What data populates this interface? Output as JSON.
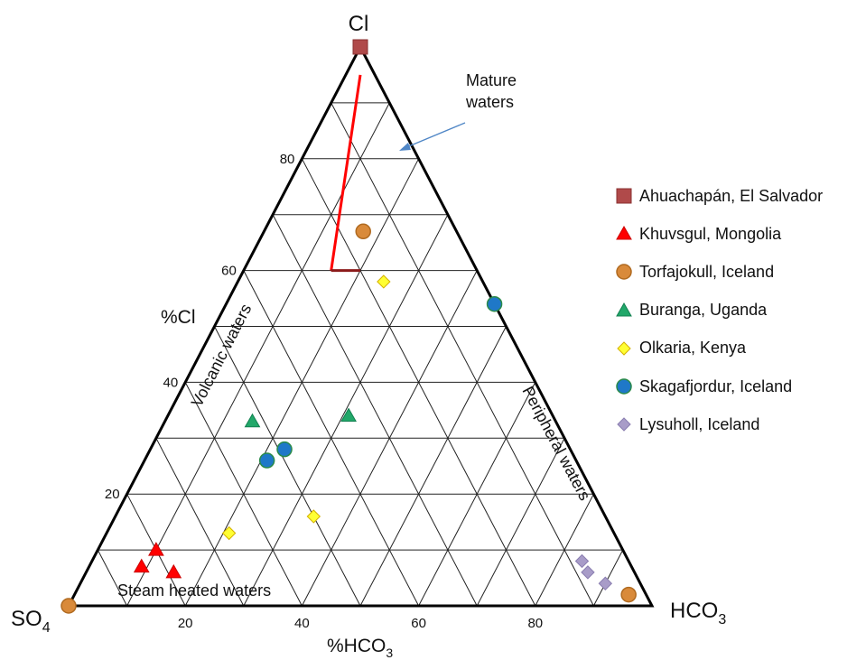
{
  "chart_data": {
    "type": "scatter",
    "subtype": "ternary",
    "vertices": {
      "top": "Cl",
      "left": [
        "SO",
        "4"
      ],
      "right": [
        "HCO",
        "3"
      ]
    },
    "axis_titles": {
      "cl": "%Cl",
      "hco3": [
        "%HCO",
        "3"
      ]
    },
    "cl_ticks": [
      20,
      40,
      60,
      80
    ],
    "hco3_ticks": [
      20,
      40,
      60,
      80
    ],
    "grid": true,
    "grid_step": 10,
    "region_labels": {
      "volcanic": "Volcanic waters",
      "peripheral": "Peripheral waters",
      "steam_heated": "Steam heated waters",
      "mature": [
        "Mature",
        "waters"
      ]
    },
    "mature_line": [
      {
        "hco3": 2.5,
        "cl": 95
      },
      {
        "hco3": 15,
        "cl": 60
      },
      {
        "hco3": 20,
        "cl": 60
      }
    ],
    "legend_position": "right",
    "series": [
      {
        "name": "Ahuachapán, El Salvador",
        "marker": "square",
        "color": "#b04a4a",
        "edge": "#8a3030",
        "points": [
          {
            "cl": 100,
            "hco3": 0
          }
        ]
      },
      {
        "name": "Khuvsgul, Mongolia",
        "marker": "triangle",
        "color": "#ff0000",
        "edge": "#cc0000",
        "points": [
          {
            "cl": 10,
            "hco3": 10
          },
          {
            "cl": 7,
            "hco3": 9
          },
          {
            "cl": 6,
            "hco3": 15
          }
        ]
      },
      {
        "name": "Torfajokull, Iceland",
        "marker": "circle",
        "color": "#d98a3a",
        "edge": "#b06a20",
        "points": [
          {
            "cl": 67,
            "hco3": 17
          },
          {
            "cl": 0,
            "hco3": 0
          },
          {
            "cl": 2,
            "hco3": 95
          }
        ]
      },
      {
        "name": "Buranga, Uganda",
        "marker": "triangle",
        "color": "#22a86a",
        "edge": "#118050",
        "points": [
          {
            "cl": 33,
            "hco3": 15
          },
          {
            "cl": 34,
            "hco3": 31
          }
        ]
      },
      {
        "name": "Olkaria, Kenya",
        "marker": "diamond",
        "color": "#ffff33",
        "edge": "#d4b000",
        "points": [
          {
            "cl": 58,
            "hco3": 25
          },
          {
            "cl": 16,
            "hco3": 34
          },
          {
            "cl": 13,
            "hco3": 21
          }
        ]
      },
      {
        "name": "Skagafjordur, Iceland",
        "marker": "circle",
        "color": "#1f78c8",
        "edge": "#2a8a4a",
        "points": [
          {
            "cl": 54,
            "hco3": 46
          },
          {
            "cl": 28,
            "hco3": 23
          },
          {
            "cl": 26,
            "hco3": 21
          }
        ]
      },
      {
        "name": "Lysuholl, Iceland",
        "marker": "diamond",
        "color": "#a89cc8",
        "edge": "#8a7eb0",
        "points": [
          {
            "cl": 8,
            "hco3": 84
          },
          {
            "cl": 6,
            "hco3": 86
          },
          {
            "cl": 4,
            "hco3": 90
          }
        ]
      }
    ]
  }
}
